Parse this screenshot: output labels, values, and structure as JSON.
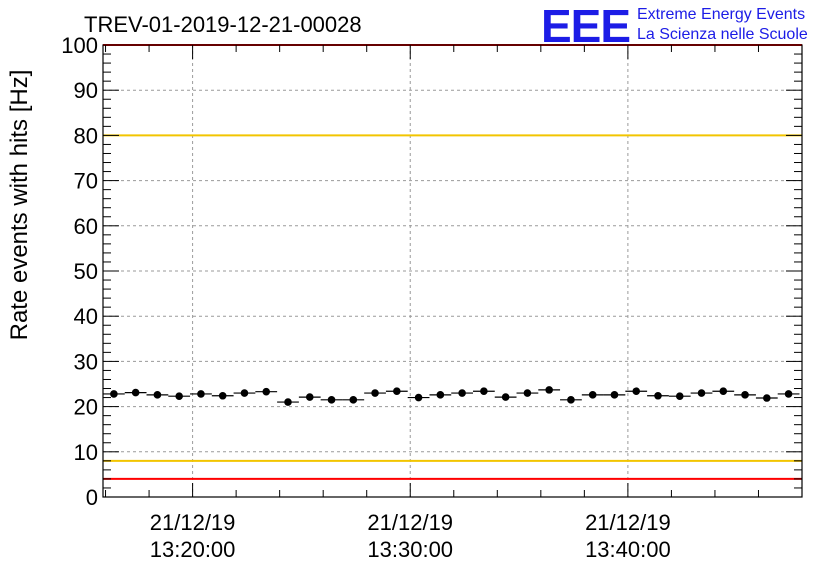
{
  "header": {
    "run_title": "TREV-01-2019-12-21-00028",
    "logo_text": "EEE",
    "org_line1": "Extreme Energy Events",
    "org_line2": "La Scienza nelle Scuole"
  },
  "colors": {
    "logo": "#1c1ce6",
    "org_text": "#1c1ce6",
    "red_limit": "#ff0000",
    "yellow_limit": "#f2c500",
    "markers": "#000000",
    "grid": "#9a9a9a"
  },
  "chart_data": {
    "type": "scatter",
    "title": "TREV-01-2019-12-21-00028",
    "ylabel": "Rate events with hits [Hz]",
    "xlabel": "",
    "ylim": [
      0,
      100
    ],
    "yticks": [
      0,
      10,
      20,
      30,
      40,
      50,
      60,
      70,
      80,
      90,
      100
    ],
    "xlim": [
      "21/12/19 13:15:53",
      "21/12/19 13:48:00"
    ],
    "xticks": [
      {
        "date": "21/12/19",
        "time": "13:20:00"
      },
      {
        "date": "21/12/19",
        "time": "13:30:00"
      },
      {
        "date": "21/12/19",
        "time": "13:40:00"
      }
    ],
    "grid": true,
    "bin_width_seconds": 60,
    "reference_lines": [
      {
        "color": "red",
        "y": 4
      },
      {
        "color": "yellow",
        "y": 8
      },
      {
        "color": "yellow",
        "y": 80
      },
      {
        "color": "red",
        "y": 100
      }
    ],
    "series": [
      {
        "x": [
          "13:16:23",
          "13:17:23",
          "13:18:23",
          "13:19:23",
          "13:20:23",
          "13:21:23",
          "13:22:23",
          "13:23:23",
          "13:24:23",
          "13:25:23",
          "13:26:23",
          "13:27:23",
          "13:28:23",
          "13:29:23",
          "13:30:23",
          "13:31:23",
          "13:32:23",
          "13:33:23",
          "13:34:23",
          "13:35:23",
          "13:36:23",
          "13:37:23",
          "13:38:23",
          "13:39:23",
          "13:40:23",
          "13:41:23",
          "13:42:23",
          "13:43:23",
          "13:44:23",
          "13:45:23",
          "13:46:23",
          "13:47:23"
        ],
        "values": [
          22.8,
          23.1,
          22.6,
          22.3,
          22.8,
          22.4,
          23.0,
          23.3,
          21.0,
          22.1,
          21.5,
          21.5,
          23.0,
          23.4,
          22.0,
          22.6,
          23.0,
          23.4,
          22.1,
          23.0,
          23.7,
          21.5,
          22.6,
          22.6,
          23.4,
          22.4,
          22.3,
          23.0,
          23.4,
          22.6,
          21.9,
          22.8
        ]
      }
    ]
  }
}
